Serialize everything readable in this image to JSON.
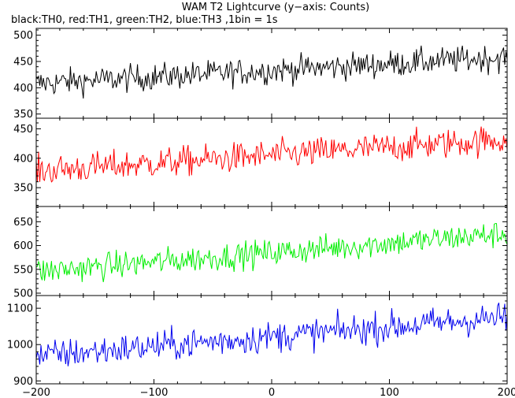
{
  "chart_data": {
    "type": "line",
    "title": "WAM T2 Lightcurve (y−axis: Counts)",
    "subtitle": "black:TH0, red:TH1, green:TH2, blue:TH3 ,1bin = 1s",
    "x_range": [
      -200,
      200
    ],
    "x_ticks": [
      -200,
      -100,
      0,
      100,
      200
    ],
    "x_tick_labels": [
      "−200",
      "−100",
      "0",
      "100",
      "200"
    ],
    "grid": false,
    "panels": [
      {
        "series": "TH0",
        "color": "#000000",
        "ylim": [
          342,
          513
        ],
        "y_ticks": [
          350,
          400,
          450,
          500
        ],
        "start_mean": 408,
        "end_mean": 458,
        "noise": 18
      },
      {
        "series": "TH1",
        "color": "#ff0000",
        "ylim": [
          318,
          468
        ],
        "y_ticks": [
          350,
          400,
          450
        ],
        "start_mean": 378,
        "end_mean": 432,
        "noise": 18
      },
      {
        "series": "TH2",
        "color": "#00ee00",
        "ylim": [
          495,
          682
        ],
        "y_ticks": [
          500,
          550,
          600,
          650
        ],
        "start_mean": 545,
        "end_mean": 625,
        "noise": 20
      },
      {
        "series": "TH3",
        "color": "#0000ee",
        "ylim": [
          892,
          1135
        ],
        "y_ticks": [
          900,
          1000,
          1100
        ],
        "start_mean": 968,
        "end_mean": 1075,
        "noise": 30
      }
    ]
  }
}
